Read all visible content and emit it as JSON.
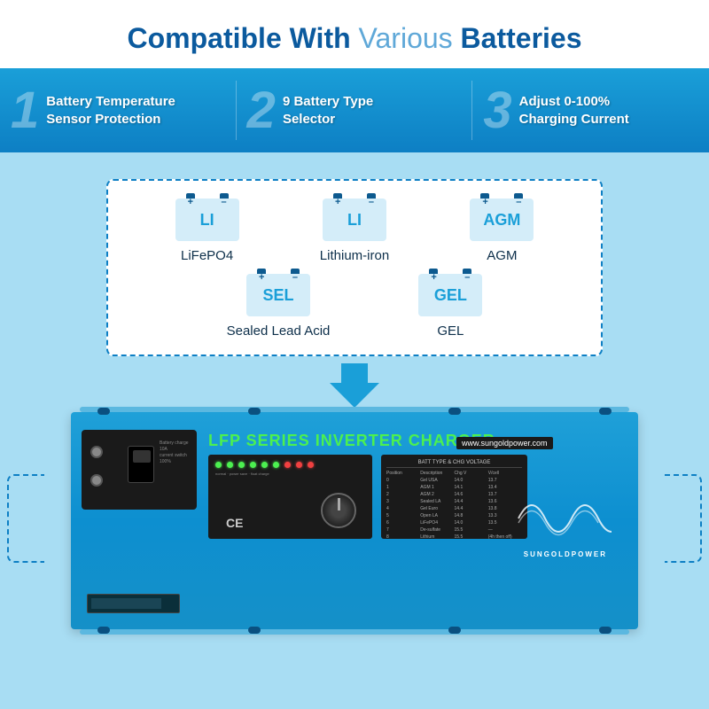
{
  "title": {
    "bold": "Compatible With",
    "light": "Various",
    "bold2": "Batteries"
  },
  "features": [
    {
      "num": "1",
      "line1": "Battery Temperature",
      "line2": "Sensor Protection"
    },
    {
      "num": "2",
      "line1": "9 Battery Type",
      "line2": "Selector"
    },
    {
      "num": "3",
      "line1": "Adjust 0-100%",
      "line2": "Charging Current"
    }
  ],
  "batteries_row1": [
    {
      "code": "LI",
      "name": "LiFePO4"
    },
    {
      "code": "LI",
      "name": "Lithium-iron"
    },
    {
      "code": "AGM",
      "name": "AGM"
    }
  ],
  "batteries_row2": [
    {
      "code": "SEL",
      "name": "Sealed Lead Acid"
    },
    {
      "code": "GEL",
      "name": "GEL"
    }
  ],
  "terminal_pos": "+",
  "terminal_neg": "–",
  "inverter": {
    "title": "LFP SERIES INVERTER CHARGER",
    "url": "www.sungoldpower.com",
    "brand": "SUNGOLDPOWER",
    "ce": "CE",
    "panel_header": "BATT TYPE & CHG VOLTAGE",
    "switch_label": "Battery charge  10A",
    "switch_label2": "current switch  100%",
    "table_rows": [
      [
        "Position",
        "Description",
        "Chg V",
        "V/cell"
      ],
      [
        "0",
        "Gel USA",
        "14.0",
        "13.7"
      ],
      [
        "1",
        "AGM 1",
        "14.1",
        "13.4"
      ],
      [
        "2",
        "AGM 2",
        "14.6",
        "13.7"
      ],
      [
        "3",
        "Sealed LA",
        "14.4",
        "13.6"
      ],
      [
        "4",
        "Gel Euro",
        "14.4",
        "13.8"
      ],
      [
        "5",
        "Open LA",
        "14.8",
        "13.3"
      ],
      [
        "6",
        "LiFePO4",
        "14.0",
        "13.5"
      ],
      [
        "7",
        "De-sulfate",
        "15.5",
        "—"
      ],
      [
        "8",
        "Lithium",
        "15.5",
        "(4h then off)"
      ]
    ],
    "mode_labels": [
      "normal",
      "power save",
      "ups function",
      "fast charge",
      "bulk charge",
      "float charge",
      "over temp",
      "over load",
      "fault"
    ]
  },
  "colors": {
    "title_dark": "#0b5a9e",
    "title_light": "#5fa8d8",
    "bar_grad_top": "#1a9fd8",
    "bar_grad_bot": "#0d7fc4",
    "main_bg": "#a8ddf3",
    "dashed": "#0d7fc4",
    "battery_fill": "#d4edf9",
    "inverter_green": "#4cf050"
  }
}
